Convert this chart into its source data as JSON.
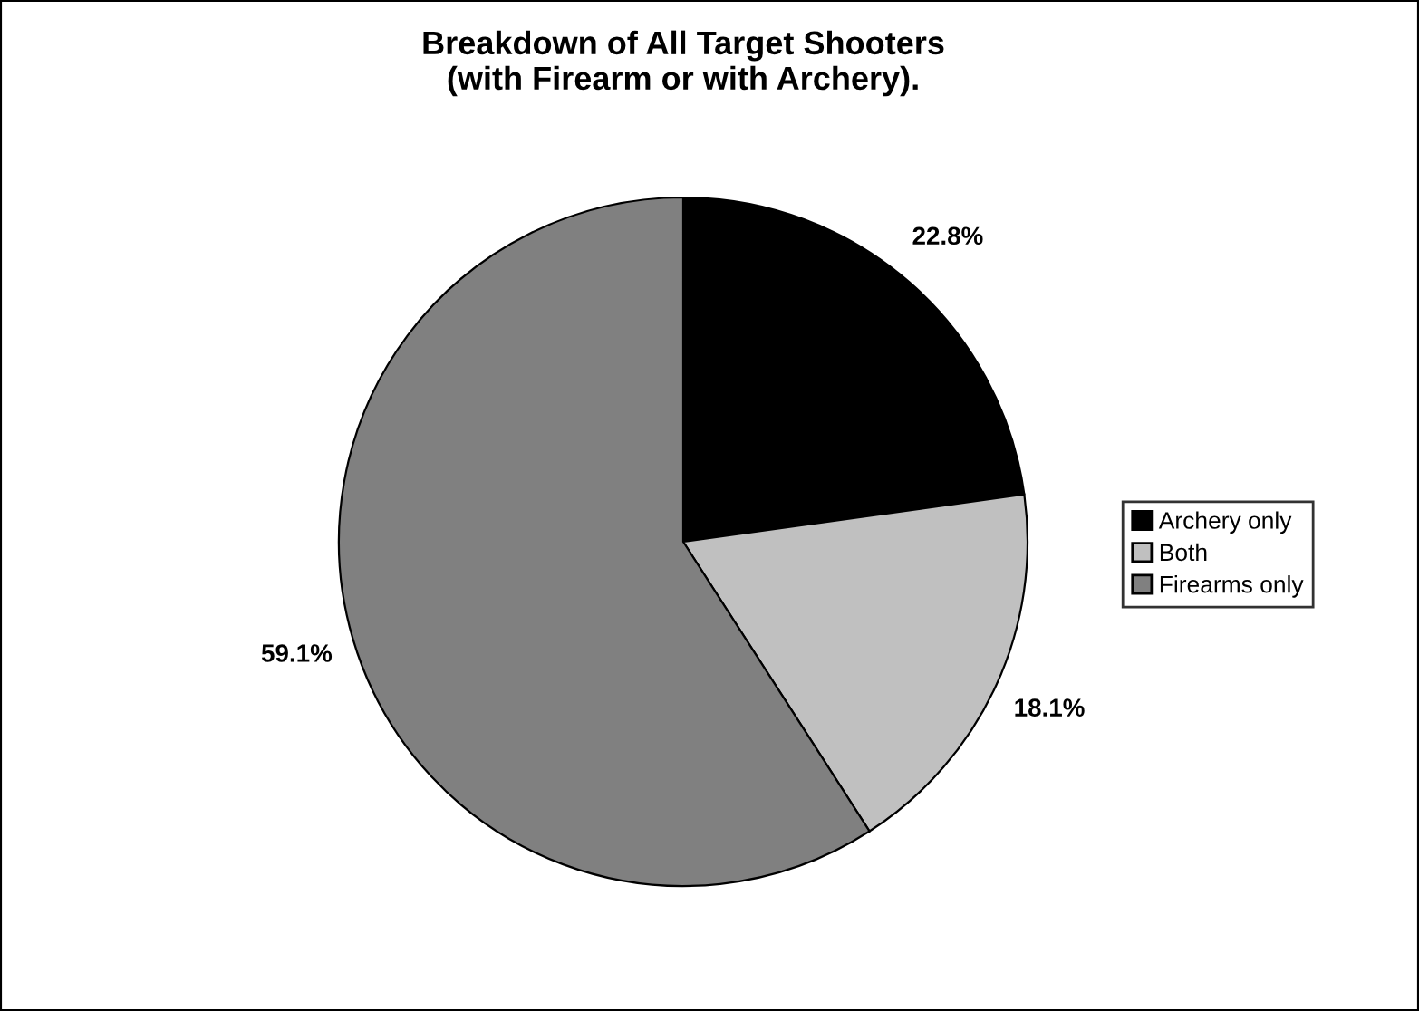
{
  "chart_data": {
    "type": "pie",
    "title": "Breakdown of All Target Shooters\n(with Firearm or with Archery).",
    "categories": [
      "Archery only",
      "Both",
      "Firearms only"
    ],
    "values": [
      22.8,
      18.1,
      59.1
    ],
    "colors": [
      "#000000",
      "#c0c0c0",
      "#808080"
    ],
    "value_labels": [
      "22.8%",
      "18.1%",
      "59.1%"
    ],
    "legend": "right"
  }
}
